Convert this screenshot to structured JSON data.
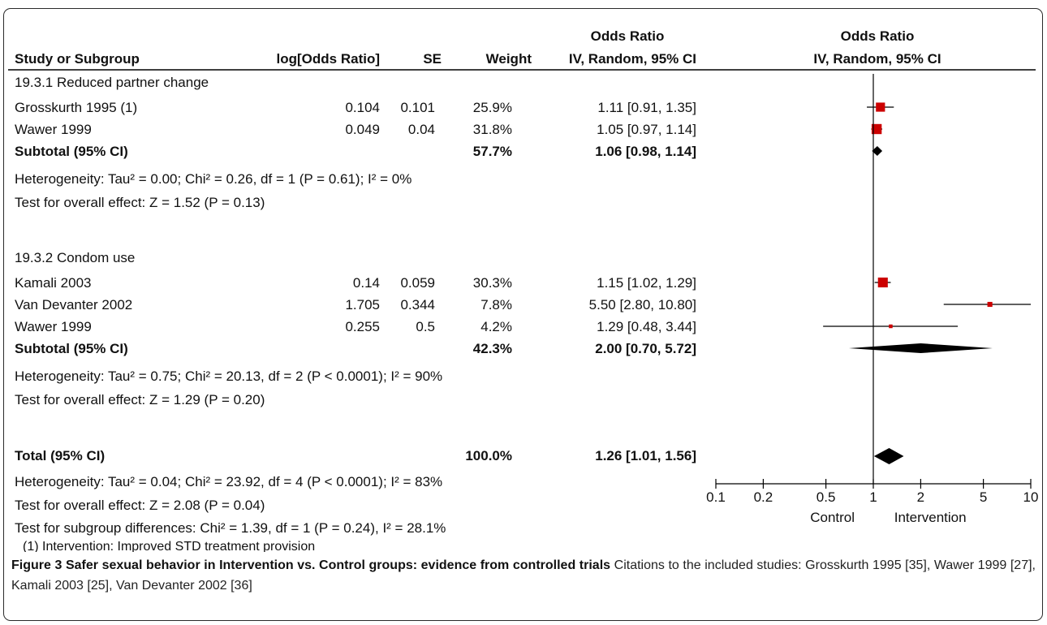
{
  "chart_data": {
    "type": "forest",
    "header": {
      "col_group_1": "Odds Ratio",
      "col_group_2": "Odds Ratio",
      "study": "Study or Subgroup",
      "logor": "log[Odds Ratio]",
      "se": "SE",
      "weight": "Weight",
      "ci": "IV, Random, 95% CI",
      "plot_ci": "IV, Random, 95% CI"
    },
    "groups": [
      {
        "title": "19.3.1 Reduced partner change",
        "studies": [
          {
            "name": "Grosskurth 1995 (1)",
            "logor": "0.104",
            "se": "0.101",
            "weight": "25.9%",
            "ci_text": "1.11 [0.91, 1.35]",
            "or": 1.11,
            "lo": 0.91,
            "hi": 1.35,
            "w": 25.9
          },
          {
            "name": "Wawer 1999",
            "logor": "0.049",
            "se": "0.04",
            "weight": "31.8%",
            "ci_text": "1.05 [0.97, 1.14]",
            "or": 1.05,
            "lo": 0.97,
            "hi": 1.14,
            "w": 31.8
          }
        ],
        "subtotal": {
          "label": "Subtotal (95% CI)",
          "weight": "57.7%",
          "ci_text": "1.06 [0.98, 1.14]",
          "or": 1.06,
          "lo": 0.98,
          "hi": 1.14
        },
        "heterogeneity": "Heterogeneity: Tau² = 0.00; Chi² = 0.26, df = 1 (P = 0.61); I² = 0%",
        "overall": "Test for overall effect: Z = 1.52 (P = 0.13)"
      },
      {
        "title": "19.3.2 Condom use",
        "studies": [
          {
            "name": "Kamali 2003",
            "logor": "0.14",
            "se": "0.059",
            "weight": "30.3%",
            "ci_text": "1.15 [1.02, 1.29]",
            "or": 1.15,
            "lo": 1.02,
            "hi": 1.29,
            "w": 30.3
          },
          {
            "name": "Van Devanter 2002",
            "logor": "1.705",
            "se": "0.344",
            "weight": "7.8%",
            "ci_text": "5.50 [2.80, 10.80]",
            "or": 5.5,
            "lo": 2.8,
            "hi": 10.8,
            "w": 7.8
          },
          {
            "name": "Wawer 1999",
            "logor": "0.255",
            "se": "0.5",
            "weight": "4.2%",
            "ci_text": "1.29 [0.48, 3.44]",
            "or": 1.29,
            "lo": 0.48,
            "hi": 3.44,
            "w": 4.2
          }
        ],
        "subtotal": {
          "label": "Subtotal (95% CI)",
          "weight": "42.3%",
          "ci_text": "2.00 [0.70, 5.72]",
          "or": 2.0,
          "lo": 0.7,
          "hi": 5.72
        },
        "heterogeneity": "Heterogeneity: Tau² = 0.75; Chi² = 20.13, df = 2 (P < 0.0001); I² = 90%",
        "overall": "Test for overall effect: Z = 1.29 (P = 0.20)"
      }
    ],
    "total": {
      "label": "Total (95% CI)",
      "weight": "100.0%",
      "ci_text": "1.26 [1.01, 1.56]",
      "or": 1.26,
      "lo": 1.01,
      "hi": 1.56,
      "heterogeneity": "Heterogeneity: Tau² = 0.04; Chi² = 23.92, df = 4 (P < 0.0001); I² = 83%",
      "overall": "Test for overall effect: Z = 2.08 (P = 0.04)",
      "subgroup": "Test for subgroup differences: Chi² = 1.39, df = 1 (P = 0.24), I² = 28.1%"
    },
    "footnote": "(1) Intervention: Improved STD treatment provision",
    "x_axis": {
      "scale": "log",
      "range": [
        0.1,
        10
      ],
      "ticks": [
        0.1,
        0.2,
        0.5,
        1,
        2,
        5,
        10
      ],
      "tick_labels": [
        "0.1",
        "0.2",
        "0.5",
        "1",
        "2",
        "5",
        "10"
      ],
      "left_label": "Control",
      "right_label": "Intervention"
    },
    "colors": {
      "study_marker": "#cc0000",
      "diamond": "#000000"
    }
  },
  "caption": {
    "bold": "Figure 3 Safer sexual behavior in Intervention vs. Control groups: evidence from controlled trials",
    "text": " Citations to the included studies: Grosskurth 1995 [35], Wawer 1999 [27], Kamali 2003 [25], Van Devanter 2002 [36]"
  }
}
